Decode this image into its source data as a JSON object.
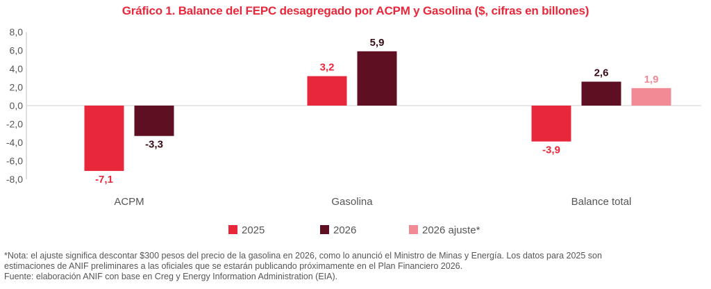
{
  "chart_data": {
    "type": "bar",
    "title": "Gráfico 1. Balance del FEPC desagregado por ACPM y Gasolina ($, cifras en billones)",
    "categories": [
      "ACPM",
      "Gasolina",
      "Balance total"
    ],
    "series": [
      {
        "name": "2025",
        "color": "#e8283a",
        "values": [
          -7.1,
          3.2,
          -3.9
        ],
        "labels": [
          "-7,1",
          "3,2",
          "-3,9"
        ],
        "label_color": "#e8283a"
      },
      {
        "name": "2026",
        "color": "#5e0f21",
        "values": [
          -3.3,
          5.9,
          2.6
        ],
        "labels": [
          "-3,3",
          "5,9",
          "2,6"
        ],
        "label_color": "#3a0a14"
      },
      {
        "name": "2026 ajuste*",
        "color": "#f28a96",
        "values": [
          null,
          null,
          1.9
        ],
        "labels": [
          null,
          null,
          "1,9"
        ],
        "label_color": "#f28a96"
      }
    ],
    "ylim": [
      -8,
      8
    ],
    "yticks": [
      "8,0",
      "6,0",
      "4,0",
      "2,0",
      "0,0",
      "-2,0",
      "-4,0",
      "-6,0",
      "-8,0"
    ],
    "ytick_values": [
      8,
      6,
      4,
      2,
      0,
      -2,
      -4,
      -6,
      -8
    ],
    "grid": false,
    "legend": "bottom-center"
  },
  "notes": {
    "line1": "*Nota: el ajuste significa descontar $300 pesos del precio de la gasolina en 2026, como lo anunció el Ministro de Minas y Energía. Los datos para 2025 son",
    "line2": "estimaciones de ANIF preliminares a las oficiales que se estarán publicando próximamente en el Plan Financiero 2026.",
    "line3": "Fuente: elaboración ANIF con base en Creg y Energy Information Administration (EIA)."
  }
}
